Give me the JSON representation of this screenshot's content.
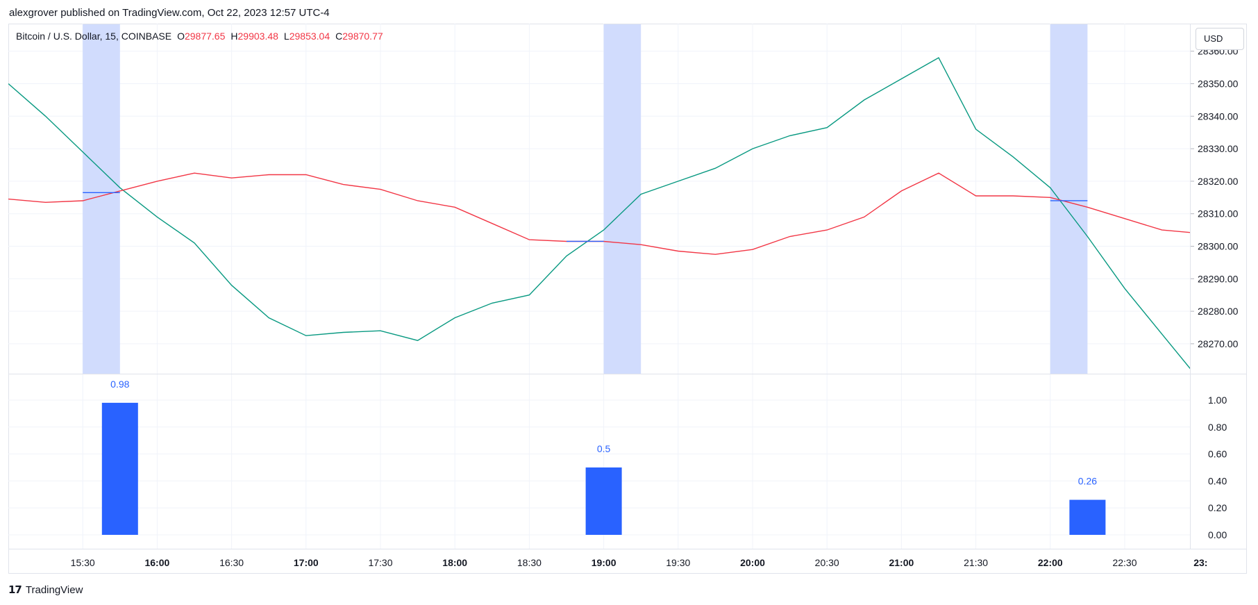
{
  "publisher": "alexgrover published on TradingView.com, Oct 22, 2023 12:57 UTC-4",
  "legend": {
    "symbol": "Bitcoin / U.S. Dollar, 15, COINBASE",
    "o_label": "O",
    "o_value": "29877.65",
    "h_label": "H",
    "h_value": "29903.48",
    "l_label": "L",
    "l_value": "29853.04",
    "c_label": "C",
    "c_value": "29870.77"
  },
  "currency_button": "USD",
  "footer_brand": "TradingView",
  "colors": {
    "green_line": "#089981",
    "red_line": "#f23645",
    "highlight": "#d1dcfd",
    "bar": "#2962ff",
    "grid": "#f0f3fa"
  },
  "chart_data": [
    {
      "type": "line",
      "x_start": "15:00",
      "x_step_minutes": 15,
      "x_ticks": [
        "15:30",
        "16:00",
        "16:30",
        "17:00",
        "17:30",
        "18:00",
        "18:30",
        "19:00",
        "19:30",
        "20:00",
        "20:30",
        "21:00",
        "21:30",
        "22:00",
        "22:30",
        "23:"
      ],
      "x_ticks_bold": [
        "16:00",
        "17:00",
        "18:00",
        "19:00",
        "20:00",
        "21:00",
        "22:00",
        "23:"
      ],
      "ylim": [
        28260,
        28365
      ],
      "y_ticks": [
        "28270.00",
        "28280.00",
        "28290.00",
        "28300.00",
        "28310.00",
        "28320.00",
        "28330.00",
        "28340.00",
        "28350.00",
        "28360.00"
      ],
      "series": [
        {
          "color": "#089981",
          "values": [
            28350,
            28340,
            28329,
            28318,
            28309,
            28301,
            28288,
            28278,
            28272.5,
            28273.5,
            28274,
            28271,
            28278,
            28282.5,
            28285,
            28297,
            28305,
            28316,
            28320,
            28324,
            28330,
            28334,
            28336.5,
            28345,
            28351.5,
            28358,
            28336,
            28327.5,
            28318,
            28303,
            28287,
            28273,
            28259
          ]
        },
        {
          "color": "#f23645",
          "values": [
            28314.5,
            28313.5,
            28314,
            28317,
            28320,
            28322.5,
            28321,
            28322,
            28322,
            28319,
            28317.5,
            28314,
            28312,
            28307,
            28302,
            28301.5,
            28301.5,
            28300.5,
            28298.5,
            28297.5,
            28299,
            28303,
            28305,
            28309,
            28317,
            28322.5,
            28315.5,
            28315.5,
            28315,
            28312,
            28308.5,
            28305,
            28304
          ]
        }
      ],
      "highlight_bars_at": [
        "15:30",
        "19:00",
        "22:00"
      ],
      "level_segments": [
        {
          "from": "15:30",
          "to": "15:45",
          "value": 28316.5
        },
        {
          "from": "18:45",
          "to": "19:00",
          "value": 28301.5
        },
        {
          "from": "22:00",
          "to": "22:15",
          "value": 28314
        }
      ]
    },
    {
      "type": "bar",
      "categories": [
        "15:45",
        "19:00",
        "22:15"
      ],
      "values": [
        0.98,
        0.5,
        0.26
      ],
      "value_labels": [
        "0.98",
        "0.5",
        "0.26"
      ],
      "ylim": [
        0,
        1.1
      ],
      "y_ticks": [
        "0.00",
        "0.20",
        "0.40",
        "0.60",
        "0.80",
        "1.00"
      ]
    }
  ]
}
